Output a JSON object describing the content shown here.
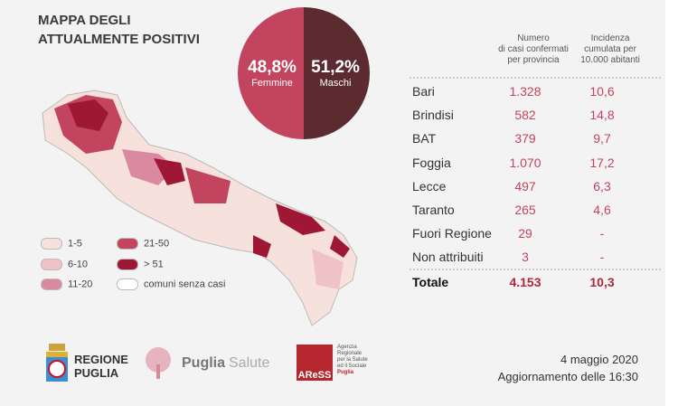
{
  "title": [
    "MAPPA DEGLI",
    "ATTUALMENTE POSITIVI"
  ],
  "gender": {
    "female": {
      "pct": "48,8%",
      "label": "Femmine",
      "value": 48.8,
      "color": "#c2445e"
    },
    "male": {
      "pct": "51,2%",
      "label": "Maschi",
      "value": 51.2,
      "color": "#5b2b30"
    }
  },
  "legend": [
    {
      "label": "1-5",
      "color": "#f6e1dc"
    },
    {
      "label": "6-10",
      "color": "#efc3c6"
    },
    {
      "label": "11-20",
      "color": "#d98aa0"
    },
    {
      "label": "21-50",
      "color": "#c2445e"
    },
    {
      "label": "> 51",
      "color": "#9e1836"
    },
    {
      "label": "comuni senza casi",
      "color": "#ffffff"
    }
  ],
  "table": {
    "header_cases": "Numero di casi confermati per provincia",
    "header_cases_lines": [
      "Numero",
      "di casi confermati",
      "per provincia"
    ],
    "header_inc_lines": [
      "Incidenza",
      "cumulata per",
      "10.000 abitanti"
    ],
    "rows": [
      {
        "name": "Bari",
        "cases": "1.328",
        "inc": "10,6"
      },
      {
        "name": "Brindisi",
        "cases": "582",
        "inc": "14,8"
      },
      {
        "name": "BAT",
        "cases": "379",
        "inc": "9,7"
      },
      {
        "name": "Foggia",
        "cases": "1.070",
        "inc": "17,2"
      },
      {
        "name": "Lecce",
        "cases": "497",
        "inc": "6,3"
      },
      {
        "name": "Taranto",
        "cases": "265",
        "inc": "4,6"
      },
      {
        "name": "Fuori Regione",
        "cases": "29",
        "inc": "-"
      },
      {
        "name": "Non attribuiti",
        "cases": "3",
        "inc": "-"
      }
    ],
    "total": {
      "name": "Totale",
      "cases": "4.153",
      "inc": "10,3"
    }
  },
  "logos": {
    "regione": [
      "REGIONE",
      "PUGLIA"
    ],
    "puglia_salute": [
      "Puglia",
      "Salute"
    ],
    "aress": "AReSS",
    "aress_text": [
      "Agenzia",
      "Regionale",
      "per la Salute",
      "ed il Sociale",
      "Puglia"
    ]
  },
  "date": "4 maggio 2020",
  "update": "Aggiornamento delle 16:30"
}
